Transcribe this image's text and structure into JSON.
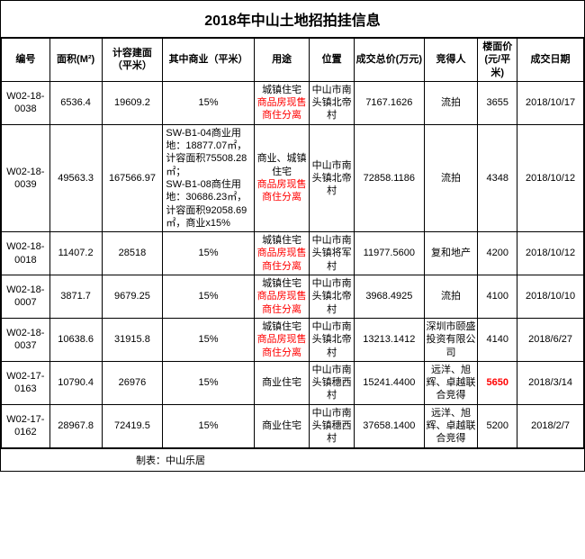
{
  "title": "2018年中山土地招拍挂信息",
  "headers": [
    "编号",
    "面积(M²)",
    "计容建面（平米）",
    "其中商业（平米）",
    "用途",
    "位置",
    "成交总价(万元)",
    "竞得人",
    "楼面价(元/平米)",
    "成交日期"
  ],
  "rows": [
    {
      "id": "W02-18-0038",
      "area": "6536.4",
      "build": "19609.2",
      "biz": "15%",
      "use": [
        {
          "t": "城镇住宅",
          "c": ""
        },
        {
          "t": "商品房现售",
          "c": "red"
        },
        {
          "t": "商住分离",
          "c": "red"
        }
      ],
      "loc": "中山市南头镇北帝村",
      "price": "7167.1626",
      "bidder": "流拍",
      "floor": "3655",
      "floorClass": "",
      "date": "2018/10/17"
    },
    {
      "id": "W02-18-0039",
      "area": "49563.3",
      "build": "167566.97",
      "biz": "SW-B1-04商业用地：18877.07㎡，计容面积75508.28㎡；\nSW-B1-08商住用地：30686.23㎡，计容面积92058.69㎡，商业x15%",
      "use": [
        {
          "t": "商业、城镇住宅",
          "c": ""
        },
        {
          "t": "商品房现售",
          "c": "red"
        },
        {
          "t": "商住分离",
          "c": "red"
        }
      ],
      "loc": "中山市南头镇北帝村",
      "price": "72858.1186",
      "bidder": "流拍",
      "floor": "4348",
      "floorClass": "",
      "date": "2018/10/12"
    },
    {
      "id": "W02-18-0018",
      "area": "11407.2",
      "build": "28518",
      "biz": "15%",
      "use": [
        {
          "t": "城镇住宅",
          "c": ""
        },
        {
          "t": "商品房现售",
          "c": "red"
        },
        {
          "t": "商住分离",
          "c": "red"
        }
      ],
      "loc": "中山市南头镇将军村",
      "price": "11977.5600",
      "bidder": "复和地产",
      "floor": "4200",
      "floorClass": "",
      "date": "2018/10/12"
    },
    {
      "id": "W02-18-0007",
      "area": "3871.7",
      "build": "9679.25",
      "biz": "15%",
      "use": [
        {
          "t": "城镇住宅",
          "c": ""
        },
        {
          "t": "商品房现售",
          "c": "red"
        },
        {
          "t": "商住分离",
          "c": "red"
        }
      ],
      "loc": "中山市南头镇北帝村",
      "price": "3968.4925",
      "bidder": "流拍",
      "floor": "4100",
      "floorClass": "",
      "date": "2018/10/10"
    },
    {
      "id": "W02-18-0037",
      "area": "10638.6",
      "build": "31915.8",
      "biz": "15%",
      "use": [
        {
          "t": "城镇住宅",
          "c": ""
        },
        {
          "t": "商品房现售",
          "c": "red"
        },
        {
          "t": "商住分离",
          "c": "red"
        }
      ],
      "loc": "中山市南头镇北帝村",
      "price": "13213.1412",
      "bidder": "深圳市颐盛投资有限公司",
      "floor": "4140",
      "floorClass": "",
      "date": "2018/6/27"
    },
    {
      "id": "W02-17-0163",
      "area": "10790.4",
      "build": "26976",
      "biz": "15%",
      "use": [
        {
          "t": "商业住宅",
          "c": ""
        }
      ],
      "loc": "中山市南头镇穗西村",
      "price": "15241.4400",
      "bidder": "远洋、旭辉、卓越联合竞得",
      "floor": "5650",
      "floorClass": "bold-red",
      "date": "2018/3/14"
    },
    {
      "id": "W02-17-0162",
      "area": "28967.8",
      "build": "72419.5",
      "biz": "15%",
      "use": [
        {
          "t": "商业住宅",
          "c": ""
        }
      ],
      "loc": "中山市南头镇穗西村",
      "price": "37658.1400",
      "bidder": "远洋、旭辉、卓越联合竞得",
      "floor": "5200",
      "floorClass": "",
      "date": "2018/2/7"
    }
  ],
  "footer": "制表：中山乐居"
}
